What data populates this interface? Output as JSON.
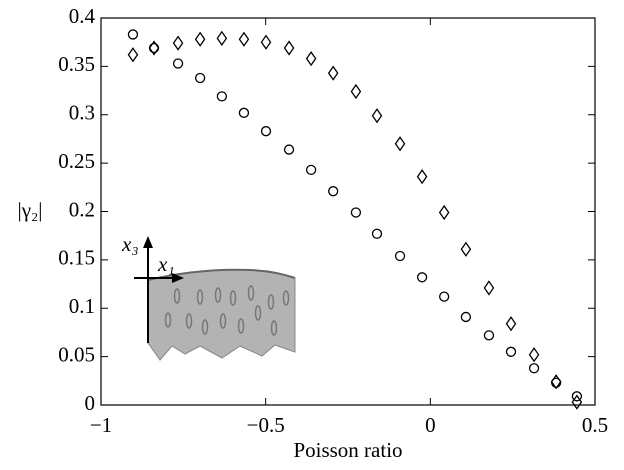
{
  "chart_data": {
    "type": "scatter",
    "x_label": "Poisson ratio",
    "y_label": "|γ₂|",
    "annotations": [
      "x₃",
      "x₁"
    ],
    "xlim": [
      -1,
      0.5
    ],
    "ylim": [
      0,
      0.4
    ],
    "xticks": [
      {
        "value": -1,
        "label": "−1"
      },
      {
        "value": -0.5,
        "label": "−0.5"
      },
      0,
      0.5
    ],
    "yticks": [
      0,
      0.05,
      0.1,
      0.15,
      0.2,
      0.25,
      0.3,
      0.35,
      0.4
    ],
    "grid": false,
    "series": [
      {
        "marker": "circle",
        "color": "#000000",
        "x": [
          -0.903,
          -0.839,
          -0.766,
          -0.699,
          -0.633,
          -0.566,
          -0.499,
          -0.429,
          -0.362,
          -0.295,
          -0.226,
          -0.162,
          -0.092,
          -0.025,
          0.042,
          0.108,
          0.178,
          0.245,
          0.315,
          0.382,
          0.445
        ],
        "values": [
          0.383,
          0.369,
          0.353,
          0.338,
          0.319,
          0.302,
          0.283,
          0.264,
          0.243,
          0.221,
          0.199,
          0.177,
          0.154,
          0.132,
          0.112,
          0.091,
          0.072,
          0.055,
          0.038,
          0.023,
          0.009
        ]
      },
      {
        "marker": "diamond",
        "color": "#000000",
        "x": [
          -0.903,
          -0.839,
          -0.766,
          -0.699,
          -0.633,
          -0.566,
          -0.499,
          -0.429,
          -0.362,
          -0.295,
          -0.226,
          -0.162,
          -0.092,
          -0.025,
          0.042,
          0.108,
          0.178,
          0.245,
          0.315,
          0.382,
          0.445
        ],
        "values": [
          0.362,
          0.369,
          0.374,
          0.378,
          0.379,
          0.378,
          0.375,
          0.369,
          0.358,
          0.343,
          0.324,
          0.299,
          0.27,
          0.236,
          0.199,
          0.161,
          0.121,
          0.084,
          0.052,
          0.024,
          0.003
        ]
      }
    ]
  }
}
